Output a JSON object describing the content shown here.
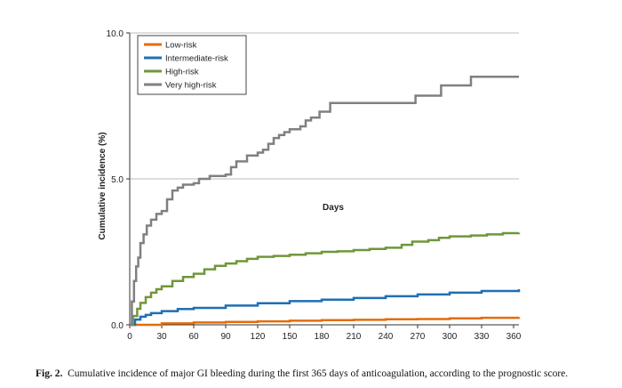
{
  "chart_data": {
    "type": "line",
    "title": "",
    "xlabel": "Days",
    "ylabel": "Cumulative incidence (%)",
    "xlim": [
      0,
      365
    ],
    "ylim": [
      0,
      10
    ],
    "x_ticks": [
      0,
      30,
      60,
      90,
      120,
      150,
      180,
      210,
      240,
      270,
      300,
      330,
      360
    ],
    "y_ticks": [
      "0.0",
      "5.0",
      "10.0"
    ],
    "grid": "horizontal at 5.0 and 10.0",
    "legend_position": "top-left",
    "series": [
      {
        "name": "Low-risk",
        "color": "#e46c0a",
        "points": [
          [
            0,
            0
          ],
          [
            30,
            0.05
          ],
          [
            60,
            0.08
          ],
          [
            90,
            0.1
          ],
          [
            120,
            0.12
          ],
          [
            150,
            0.14
          ],
          [
            180,
            0.16
          ],
          [
            210,
            0.17
          ],
          [
            240,
            0.19
          ],
          [
            270,
            0.2
          ],
          [
            300,
            0.22
          ],
          [
            330,
            0.24
          ],
          [
            365,
            0.26
          ]
        ]
      },
      {
        "name": "Intermediate-risk",
        "color": "#1f6fb3",
        "points": [
          [
            0,
            0
          ],
          [
            5,
            0.18
          ],
          [
            10,
            0.28
          ],
          [
            15,
            0.34
          ],
          [
            20,
            0.4
          ],
          [
            30,
            0.47
          ],
          [
            45,
            0.54
          ],
          [
            60,
            0.58
          ],
          [
            90,
            0.66
          ],
          [
            120,
            0.74
          ],
          [
            150,
            0.81
          ],
          [
            180,
            0.86
          ],
          [
            210,
            0.92
          ],
          [
            240,
            0.98
          ],
          [
            270,
            1.04
          ],
          [
            300,
            1.1
          ],
          [
            330,
            1.16
          ],
          [
            365,
            1.22
          ]
        ]
      },
      {
        "name": "High-risk",
        "color": "#70963a",
        "points": [
          [
            0,
            0
          ],
          [
            3,
            0.3
          ],
          [
            7,
            0.55
          ],
          [
            10,
            0.75
          ],
          [
            15,
            0.95
          ],
          [
            20,
            1.1
          ],
          [
            25,
            1.22
          ],
          [
            30,
            1.32
          ],
          [
            40,
            1.5
          ],
          [
            50,
            1.64
          ],
          [
            60,
            1.75
          ],
          [
            70,
            1.9
          ],
          [
            80,
            2.02
          ],
          [
            90,
            2.1
          ],
          [
            100,
            2.18
          ],
          [
            110,
            2.26
          ],
          [
            120,
            2.33
          ],
          [
            135,
            2.36
          ],
          [
            150,
            2.4
          ],
          [
            165,
            2.45
          ],
          [
            180,
            2.5
          ],
          [
            195,
            2.52
          ],
          [
            210,
            2.56
          ],
          [
            225,
            2.6
          ],
          [
            240,
            2.64
          ],
          [
            255,
            2.74
          ],
          [
            265,
            2.85
          ],
          [
            280,
            2.9
          ],
          [
            290,
            2.98
          ],
          [
            300,
            3.03
          ],
          [
            320,
            3.06
          ],
          [
            335,
            3.1
          ],
          [
            350,
            3.14
          ],
          [
            365,
            3.15
          ]
        ]
      },
      {
        "name": "Very high-risk",
        "color": "#808080",
        "points": [
          [
            0,
            0
          ],
          [
            2,
            0.8
          ],
          [
            4,
            1.5
          ],
          [
            6,
            2.0
          ],
          [
            8,
            2.3
          ],
          [
            10,
            2.8
          ],
          [
            13,
            3.1
          ],
          [
            16,
            3.4
          ],
          [
            20,
            3.6
          ],
          [
            25,
            3.8
          ],
          [
            30,
            3.9
          ],
          [
            35,
            4.3
          ],
          [
            40,
            4.6
          ],
          [
            45,
            4.7
          ],
          [
            50,
            4.8
          ],
          [
            60,
            4.85
          ],
          [
            65,
            5.0
          ],
          [
            75,
            5.1
          ],
          [
            90,
            5.15
          ],
          [
            95,
            5.4
          ],
          [
            100,
            5.6
          ],
          [
            110,
            5.8
          ],
          [
            120,
            5.9
          ],
          [
            125,
            6.0
          ],
          [
            130,
            6.2
          ],
          [
            135,
            6.4
          ],
          [
            140,
            6.5
          ],
          [
            145,
            6.6
          ],
          [
            150,
            6.7
          ],
          [
            160,
            6.8
          ],
          [
            165,
            7.0
          ],
          [
            170,
            7.1
          ],
          [
            178,
            7.3
          ],
          [
            188,
            7.6
          ],
          [
            210,
            7.6
          ],
          [
            240,
            7.6
          ],
          [
            265,
            7.6
          ],
          [
            268,
            7.85
          ],
          [
            290,
            7.85
          ],
          [
            292,
            8.2
          ],
          [
            318,
            8.2
          ],
          [
            320,
            8.5
          ],
          [
            365,
            8.5
          ]
        ]
      }
    ]
  },
  "caption": {
    "label": "Fig. 2.",
    "text": "Cumulative incidence of major GI bleeding during the first 365 days of anticoagulation, according to the prognostic score."
  }
}
